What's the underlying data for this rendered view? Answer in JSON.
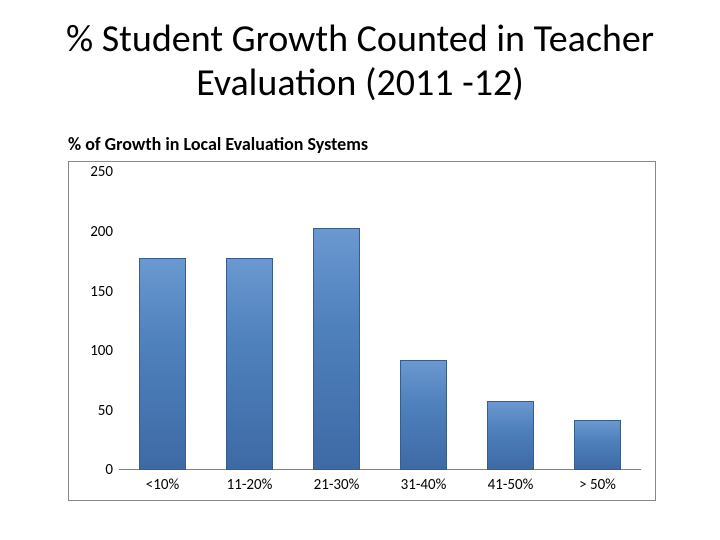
{
  "title": "% Student Growth Counted in Teacher Evaluation (2011 -12)",
  "subtitle": "% of Growth in Local Evaluation Systems",
  "chart": {
    "type": "bar",
    "categories": [
      "<10%",
      "11-20%",
      "21-30%",
      "31-40%",
      "41-50%",
      "> 50%"
    ],
    "values": [
      178,
      178,
      203,
      93,
      58,
      42
    ],
    "bar_fill": "#4f81bd",
    "bar_border": "#385d8a",
    "ylim": [
      0,
      250
    ],
    "ytick_step": 50,
    "yticks": [
      0,
      50,
      100,
      150,
      200,
      250
    ],
    "bar_width_ratio": 0.55,
    "frame_border_color": "#888888",
    "background_color": "#ffffff",
    "axis_label_fontsize": 15,
    "axis_label_color": "#000000",
    "title_fontsize": 38,
    "title_color": "#000000",
    "subtitle_fontsize": 18,
    "subtitle_fontweight": 600
  }
}
